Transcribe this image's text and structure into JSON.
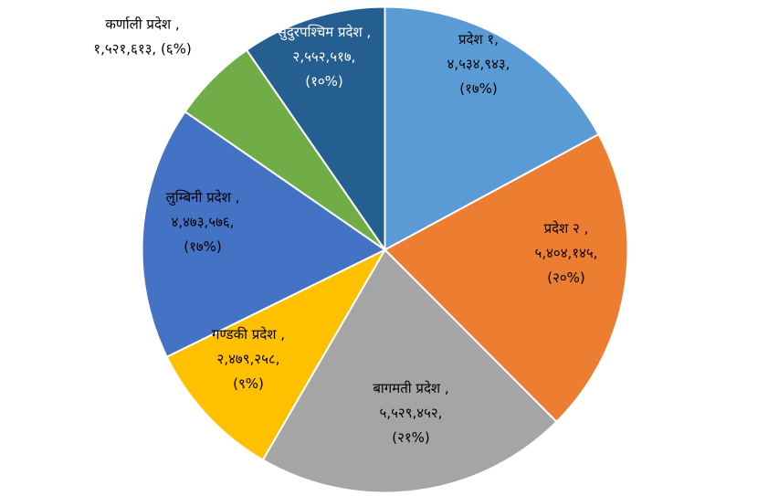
{
  "chart_data": {
    "type": "pie",
    "values": [
      4534943,
      5404145,
      5529452,
      2479258,
      4473576,
      1521613,
      2552517
    ],
    "slices": [
      {
        "name": "प्रदेश १",
        "value": 4534943,
        "percent": 17,
        "color": "#5b9bd5",
        "label_lines": [
          "प्रदेश १,",
          "४,५३४,९४३,",
          "(१७%)"
        ],
        "label_color": "#000000"
      },
      {
        "name": "प्रदेश २",
        "value": 5404145,
        "percent": 20,
        "color": "#ed7d31",
        "label_lines": [
          "प्रदेश २ ,",
          "५,४०४,१४५,",
          "(२०%)"
        ],
        "label_color": "#000000"
      },
      {
        "name": "बागमती प्रदेश",
        "value": 5529452,
        "percent": 21,
        "color": "#a5a5a5",
        "label_lines": [
          "बागमती प्रदेश ,",
          "५,५२९,४५२,",
          "(२१%)"
        ],
        "label_color": "#000000"
      },
      {
        "name": "गण्डकी प्रदेश",
        "value": 2479258,
        "percent": 9,
        "color": "#ffc000",
        "label_lines": [
          "गण्डकी प्रदेश ,",
          "२,४७९,२५८,",
          "(९%)"
        ],
        "label_color": "#000000"
      },
      {
        "name": "लुम्बिनी प्रदेश",
        "value": 4473576,
        "percent": 17,
        "color": "#4472c4",
        "label_lines": [
          "लुम्बिनी प्रदेश ,",
          "४,४७३,५७६,",
          "(१७%)"
        ],
        "label_color": "#000000"
      },
      {
        "name": "कर्णाली प्रदेश",
        "value": 1521613,
        "percent": 6,
        "color": "#70ad47",
        "label_lines": [
          "कर्णाली प्रदेश ,",
          "१,५२१,६१३, (६%)"
        ],
        "label_color": "#000000"
      },
      {
        "name": "सुदुरपश्चिम प्रदेश",
        "value": 2552517,
        "percent": 10,
        "color": "#255e91",
        "label_lines": [
          "सुदुरपश्चिम प्रदेश ,",
          "२,५५२,५१७,",
          "(१०%)"
        ],
        "label_color": "#ffffff"
      }
    ],
    "start_angle_deg": 0,
    "direction": "clockwise",
    "legend": "none"
  }
}
